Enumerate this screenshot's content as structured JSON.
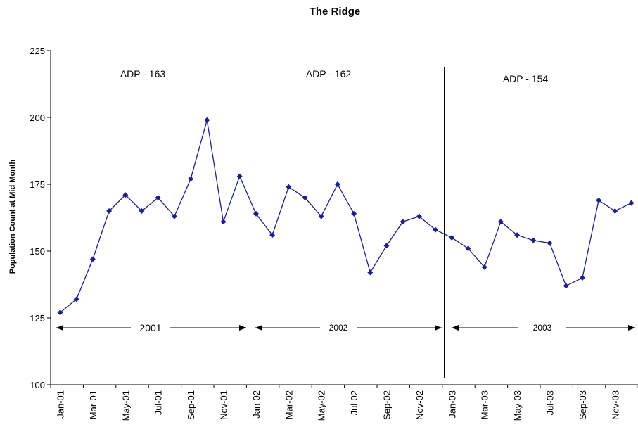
{
  "chart_data": {
    "type": "line",
    "title": "The Ridge",
    "ylabel": "Population Count at Mid Month",
    "xlabel": "",
    "ylim": [
      100,
      225
    ],
    "yticks": [
      100,
      125,
      150,
      175,
      200,
      225
    ],
    "grid": false,
    "legend": "none",
    "x_tick_labels": [
      "Jan-01",
      "Mar-01",
      "May-01",
      "Jul-01",
      "Sep-01",
      "Nov-01",
      "Jan-02",
      "Mar-02",
      "May-02",
      "Jul-02",
      "Sep-02",
      "Nov-02",
      "Jan-03",
      "Mar-03",
      "May-03",
      "Jul-03",
      "Sep-03",
      "Nov-03"
    ],
    "series": [
      {
        "color": "#1f1f8c",
        "values": [
          127,
          132,
          147,
          165,
          171,
          165,
          170,
          163,
          177,
          199,
          161,
          178,
          164,
          156,
          174,
          170,
          163,
          175,
          164,
          142,
          152,
          161,
          163,
          158,
          155,
          151,
          144,
          161,
          156,
          154,
          153,
          137,
          140,
          169,
          165,
          168
        ]
      }
    ],
    "annotations": {
      "adp": [
        "ADP - 163",
        "ADP - 162",
        "ADP - 154"
      ],
      "years": [
        "2001",
        "2002",
        "2003"
      ]
    }
  }
}
